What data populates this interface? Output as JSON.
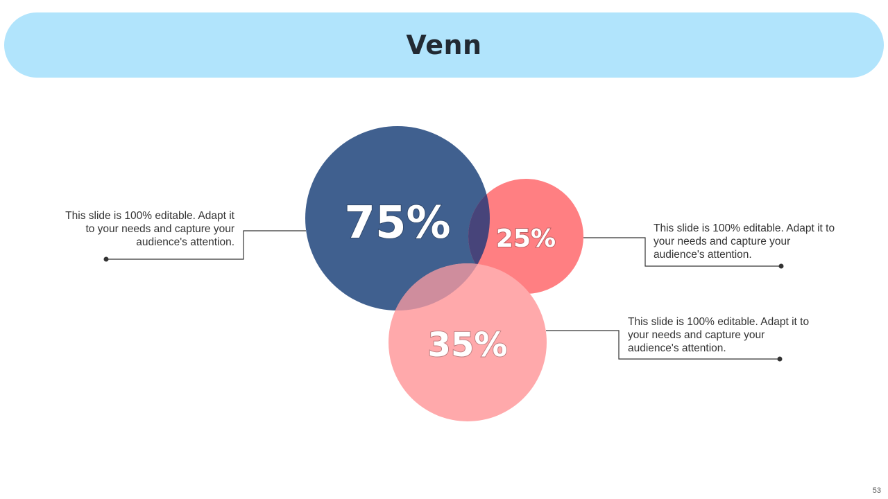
{
  "slide": {
    "title": "Venn",
    "page_number": "53"
  },
  "venn": {
    "circles": [
      {
        "id": "a",
        "label": "75%",
        "color": "#40608f"
      },
      {
        "id": "b",
        "label": "25%",
        "color": "#ff7f82"
      },
      {
        "id": "c",
        "label": "35%",
        "color": "#ffa9ab"
      }
    ],
    "overlap_colors": {
      "a_b": "#47447a",
      "a_c": "#cf8d9d"
    }
  },
  "callouts": {
    "left": "This slide is 100% editable. Adapt it to your needs and capture your audience's attention.",
    "right_top": "This slide is 100% editable. Adapt it to your needs and capture your audience's attention.",
    "right_bottom": "This slide is 100% editable. Adapt it to your needs and capture your audience's attention."
  }
}
